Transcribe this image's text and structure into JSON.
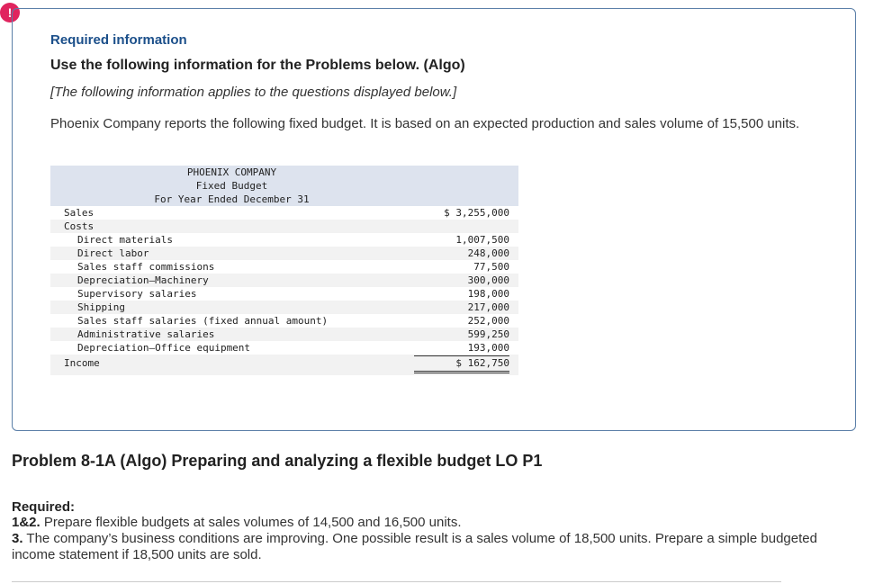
{
  "alert_glyph": "!",
  "required_info_label": "Required information",
  "use_info": "Use the following information for the Problems below. (Algo)",
  "note": "[The following information applies to the questions displayed below.]",
  "paragraph": "Phoenix Company reports the following fixed budget. It is based on an expected production and sales volume of 15,500 units.",
  "budget": {
    "company": "PHOENIX COMPANY",
    "title": "Fixed Budget",
    "period": "For Year Ended December 31",
    "sales_label": "Sales",
    "sales_amount": "$ 3,255,000",
    "costs_label": "Costs",
    "cost_items": [
      {
        "label": "Direct materials",
        "amount": "1,007,500"
      },
      {
        "label": "Direct labor",
        "amount": "248,000"
      },
      {
        "label": "Sales staff commissions",
        "amount": "77,500"
      },
      {
        "label": "Depreciation—Machinery",
        "amount": "300,000"
      },
      {
        "label": "Supervisory salaries",
        "amount": "198,000"
      },
      {
        "label": "Shipping",
        "amount": "217,000"
      },
      {
        "label": "Sales staff salaries (fixed annual amount)",
        "amount": "252,000"
      },
      {
        "label": "Administrative salaries",
        "amount": "599,250"
      },
      {
        "label": "Depreciation—Office equipment",
        "amount": "193,000"
      }
    ],
    "income_label": "Income",
    "income_amount": "$ 162,750"
  },
  "problem_title": "Problem 8-1A (Algo) Preparing and analyzing a flexible budget LO P1",
  "required_label": "Required:",
  "requirements": [
    {
      "num": "1&2.",
      "text": " Prepare flexible budgets at sales volumes of 14,500 and 16,500 units."
    },
    {
      "num": "3.",
      "text": " The company’s business conditions are improving. One possible result is a sales volume of 18,500 units. Prepare a simple budgeted income statement if 18,500 units are sold."
    }
  ]
}
